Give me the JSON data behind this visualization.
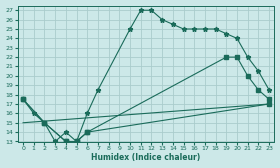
{
  "xlabel": "Humidex (Indice chaleur)",
  "bg_color": "#cce8e8",
  "grid_color": "#aacccc",
  "line_color": "#1a6b5a",
  "xlim": [
    -0.5,
    23.5
  ],
  "ylim": [
    13,
    27.5
  ],
  "xticks": [
    0,
    1,
    2,
    3,
    4,
    5,
    6,
    7,
    8,
    9,
    10,
    11,
    12,
    13,
    14,
    15,
    16,
    17,
    18,
    19,
    20,
    21,
    22,
    23
  ],
  "yticks": [
    13,
    14,
    15,
    16,
    17,
    18,
    19,
    20,
    21,
    22,
    23,
    24,
    25,
    26,
    27
  ],
  "series1_x": [
    0,
    1,
    2,
    3,
    4,
    5,
    6,
    7,
    10,
    11,
    12,
    13,
    14,
    15,
    16,
    17,
    18,
    19,
    20,
    21,
    22,
    23
  ],
  "series1_y": [
    17.5,
    16,
    15,
    13,
    14,
    13,
    16,
    18.5,
    25,
    27,
    27,
    26,
    25.5,
    25,
    25,
    25,
    25,
    24.5,
    24,
    22,
    20.5,
    18.5
  ],
  "series2_x": [
    0,
    2,
    4,
    5,
    6,
    19,
    20,
    21,
    22,
    23
  ],
  "series2_y": [
    17.5,
    15,
    13,
    13,
    14,
    22,
    22,
    20,
    18.5,
    17.5
  ],
  "series3_x": [
    0,
    2,
    4,
    5,
    6,
    23
  ],
  "series3_y": [
    17.5,
    15,
    13,
    13,
    14,
    17
  ],
  "series4_x": [
    0,
    23
  ],
  "series4_y": [
    15,
    17
  ]
}
